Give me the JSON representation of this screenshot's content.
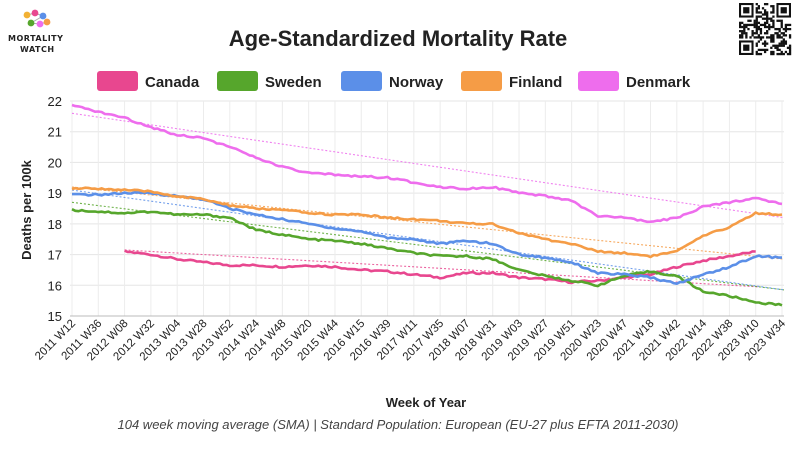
{
  "logo": {
    "line1": "MORTALITY",
    "line2": "WATCH"
  },
  "qr": {
    "icon": "qr-code-icon"
  },
  "chart_data": {
    "type": "line",
    "title": "Age-Standardized Mortality Rate",
    "xlabel": "Week of Year",
    "ylabel": "Deaths per 100k",
    "footer": "104 week moving average (SMA) | Standard Population: European (EU-27 plus EFTA 2011-2030)",
    "ylim": [
      15,
      22
    ],
    "yticks": [
      15,
      16,
      17,
      18,
      19,
      20,
      21,
      22
    ],
    "grid": true,
    "legend_position": "top",
    "xticks": [
      "2011 W12",
      "2011 W36",
      "2012 W08",
      "2012 W32",
      "2013 W04",
      "2013 W28",
      "2013 W52",
      "2014 W24",
      "2014 W48",
      "2015 W20",
      "2015 W44",
      "2016 W15",
      "2016 W39",
      "2017 W11",
      "2017 W35",
      "2018 W07",
      "2018 W31",
      "2019 W03",
      "2019 W27",
      "2019 W51",
      "2020 W23",
      "2020 W47",
      "2021 W18",
      "2021 W42",
      "2022 W14",
      "2022 W38",
      "2023 W10",
      "2023 W34"
    ],
    "series": [
      {
        "name": "Canada",
        "color": "#e8478f",
        "values": [
          null,
          null,
          17.1,
          17.0,
          16.85,
          16.75,
          16.65,
          16.65,
          16.6,
          16.65,
          16.6,
          16.5,
          16.45,
          16.35,
          16.25,
          16.4,
          16.4,
          16.25,
          16.2,
          16.1,
          16.15,
          16.25,
          16.35,
          16.6,
          16.8,
          16.95,
          17.1,
          null
        ],
        "trend": [
          17.15,
          15.95
        ]
      },
      {
        "name": "Sweden",
        "color": "#56a62c",
        "values": [
          18.45,
          18.4,
          18.35,
          18.4,
          18.3,
          18.3,
          18.2,
          17.8,
          17.65,
          17.5,
          17.45,
          17.35,
          17.2,
          17.05,
          16.95,
          16.95,
          16.85,
          16.5,
          16.3,
          16.15,
          16.0,
          16.3,
          16.45,
          16.3,
          15.8,
          15.65,
          15.45,
          15.35
        ],
        "trend": [
          18.7,
          15.85
        ]
      },
      {
        "name": "Norway",
        "color": "#5b8fe8",
        "values": [
          18.95,
          18.95,
          19.0,
          19.0,
          18.9,
          18.8,
          18.5,
          18.3,
          18.15,
          18.0,
          17.85,
          17.75,
          17.55,
          17.5,
          17.35,
          17.45,
          17.35,
          17.0,
          16.9,
          16.75,
          16.4,
          16.35,
          16.25,
          16.05,
          16.35,
          16.6,
          16.95,
          16.9
        ],
        "trend": [
          19.1,
          15.85
        ]
      },
      {
        "name": "Finland",
        "color": "#f59c46",
        "values": [
          19.15,
          19.15,
          19.1,
          19.05,
          18.9,
          18.8,
          18.6,
          18.5,
          18.45,
          18.35,
          18.3,
          18.3,
          18.2,
          18.15,
          18.1,
          18.0,
          18.0,
          17.7,
          17.5,
          17.35,
          17.1,
          17.05,
          16.95,
          17.1,
          17.6,
          17.9,
          18.35,
          18.3
        ],
        "trend": [
          19.2,
          16.85
        ]
      },
      {
        "name": "Denmark",
        "color": "#ee6ded",
        "values": [
          21.85,
          21.65,
          21.45,
          21.15,
          20.9,
          20.8,
          20.5,
          20.15,
          19.85,
          19.65,
          19.6,
          19.55,
          19.5,
          19.35,
          19.2,
          19.15,
          19.2,
          19.0,
          18.9,
          18.75,
          18.25,
          18.2,
          18.05,
          18.2,
          18.55,
          18.7,
          18.85,
          18.65
        ],
        "trend": [
          21.6,
          18.2
        ]
      }
    ]
  }
}
